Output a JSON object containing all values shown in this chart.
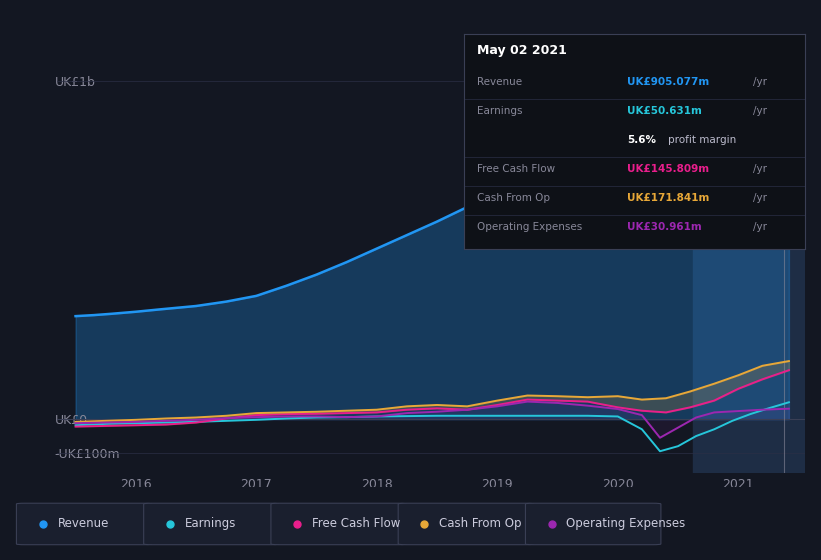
{
  "bg_color": "#131722",
  "chart_bg": "#131722",
  "panel_bg": "#1e2130",
  "ylabel_top": "UK£1b",
  "ylabel_mid": "UK£0",
  "ylabel_bot": "-UK£100m",
  "xlim": [
    2015.35,
    2021.55
  ],
  "ylim": [
    -160,
    1100
  ],
  "revenue_color": "#2196f3",
  "earnings_color": "#26c6da",
  "fcf_color": "#e91e8c",
  "cashfromop_color": "#e8a838",
  "opex_color": "#9c27b0",
  "highlight_start": 2020.62,
  "vline_x": 2021.38,
  "revenue": {
    "x": [
      2015.5,
      2015.65,
      2015.8,
      2016.0,
      2016.2,
      2016.5,
      2016.75,
      2017.0,
      2017.25,
      2017.5,
      2017.75,
      2018.0,
      2018.25,
      2018.5,
      2018.75,
      2019.0,
      2019.25,
      2019.5,
      2019.75,
      2020.0,
      2020.25,
      2020.45,
      2020.65,
      2020.85,
      2021.0,
      2021.15,
      2021.3,
      2021.42
    ],
    "y": [
      305,
      308,
      312,
      318,
      325,
      335,
      348,
      365,
      395,
      428,
      465,
      505,
      545,
      585,
      628,
      665,
      700,
      725,
      748,
      785,
      755,
      730,
      728,
      738,
      752,
      800,
      858,
      905
    ]
  },
  "earnings": {
    "x": [
      2015.5,
      2015.75,
      2016.0,
      2016.25,
      2016.5,
      2016.75,
      2017.0,
      2017.25,
      2017.5,
      2017.75,
      2018.0,
      2018.25,
      2018.5,
      2018.75,
      2019.0,
      2019.25,
      2019.5,
      2019.75,
      2020.0,
      2020.2,
      2020.35,
      2020.5,
      2020.65,
      2020.8,
      2020.95,
      2021.1,
      2021.25,
      2021.42
    ],
    "y": [
      -18,
      -14,
      -12,
      -10,
      -8,
      -5,
      -2,
      2,
      5,
      6,
      8,
      9,
      10,
      10,
      10,
      10,
      10,
      10,
      8,
      -30,
      -95,
      -80,
      -50,
      -30,
      -5,
      15,
      32,
      50
    ]
  },
  "fcf": {
    "x": [
      2015.5,
      2015.75,
      2016.0,
      2016.25,
      2016.5,
      2016.75,
      2017.0,
      2017.25,
      2017.5,
      2017.75,
      2018.0,
      2018.25,
      2018.5,
      2018.75,
      2019.0,
      2019.25,
      2019.5,
      2019.75,
      2020.0,
      2020.2,
      2020.4,
      2020.6,
      2020.8,
      2021.0,
      2021.2,
      2021.42
    ],
    "y": [
      -22,
      -20,
      -18,
      -16,
      -10,
      2,
      12,
      15,
      16,
      18,
      20,
      28,
      32,
      28,
      42,
      58,
      55,
      52,
      35,
      25,
      20,
      35,
      55,
      90,
      118,
      145
    ]
  },
  "cashfromop": {
    "x": [
      2015.5,
      2015.75,
      2016.0,
      2016.25,
      2016.5,
      2016.75,
      2017.0,
      2017.25,
      2017.5,
      2017.75,
      2018.0,
      2018.25,
      2018.5,
      2018.75,
      2019.0,
      2019.25,
      2019.5,
      2019.75,
      2020.0,
      2020.2,
      2020.4,
      2020.6,
      2020.8,
      2021.0,
      2021.2,
      2021.42
    ],
    "y": [
      -8,
      -5,
      -2,
      2,
      5,
      10,
      18,
      20,
      22,
      25,
      28,
      38,
      42,
      38,
      55,
      70,
      68,
      65,
      68,
      58,
      62,
      82,
      105,
      130,
      158,
      172
    ]
  },
  "opex": {
    "x": [
      2015.5,
      2015.75,
      2016.0,
      2016.25,
      2016.5,
      2016.75,
      2017.0,
      2017.25,
      2017.5,
      2017.75,
      2018.0,
      2018.25,
      2018.5,
      2018.75,
      2019.0,
      2019.25,
      2019.5,
      2019.75,
      2020.0,
      2020.2,
      2020.35,
      2020.5,
      2020.65,
      2020.8,
      2021.0,
      2021.2,
      2021.42
    ],
    "y": [
      -12,
      -10,
      -8,
      -5,
      -2,
      3,
      6,
      8,
      8,
      6,
      8,
      18,
      22,
      28,
      38,
      52,
      48,
      40,
      30,
      12,
      -55,
      -25,
      5,
      20,
      24,
      28,
      31
    ]
  },
  "legend": [
    {
      "label": "Revenue",
      "color": "#2196f3"
    },
    {
      "label": "Earnings",
      "color": "#26c6da"
    },
    {
      "label": "Free Cash Flow",
      "color": "#e91e8c"
    },
    {
      "label": "Cash From Op",
      "color": "#e8a838"
    },
    {
      "label": "Operating Expenses",
      "color": "#9c27b0"
    }
  ],
  "tooltip": {
    "date": "May 02 2021",
    "rows": [
      {
        "label": "Revenue",
        "value": "UK£905.077m",
        "suffix": " /yr",
        "color": "#2196f3",
        "sep_after": true
      },
      {
        "label": "Earnings",
        "value": "UK£50.631m",
        "suffix": " /yr",
        "color": "#26c6da",
        "sep_after": false
      },
      {
        "label": "",
        "value": "5.6%",
        "suffix": " profit margin",
        "color": "#ffffff",
        "sep_after": true
      },
      {
        "label": "Free Cash Flow",
        "value": "UK£145.809m",
        "suffix": " /yr",
        "color": "#e91e8c",
        "sep_after": true
      },
      {
        "label": "Cash From Op",
        "value": "UK£171.841m",
        "suffix": " /yr",
        "color": "#e8a838",
        "sep_after": true
      },
      {
        "label": "Operating Expenses",
        "value": "UK£30.961m",
        "suffix": " /yr",
        "color": "#9c27b0",
        "sep_after": false
      }
    ]
  }
}
